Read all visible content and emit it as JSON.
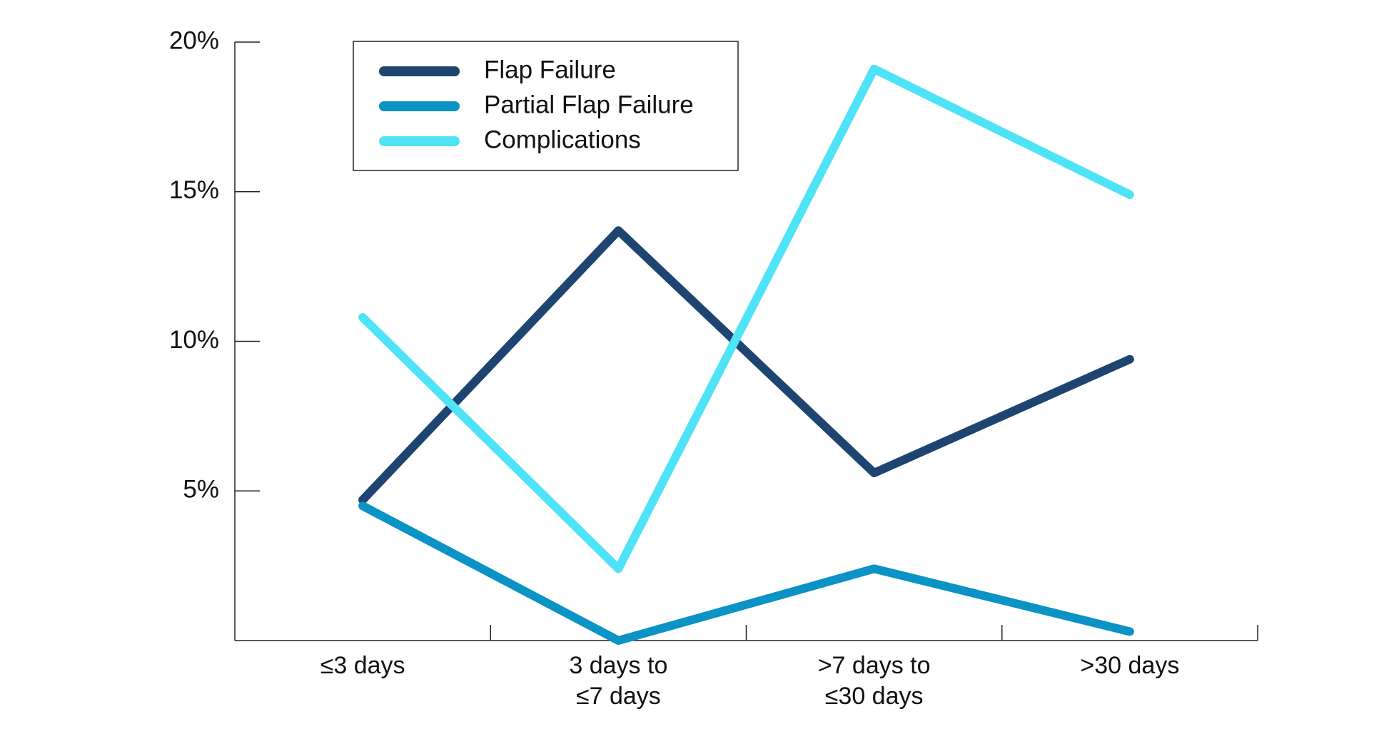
{
  "chart_data": {
    "type": "line",
    "categories": [
      "≤3 days",
      "3 days to\n≤7 days",
      ">7 days to\n≤30 days",
      ">30 days"
    ],
    "series": [
      {
        "name": "Flap Failure",
        "color": "#1e4470",
        "values": [
          4.7,
          13.7,
          5.6,
          9.4
        ]
      },
      {
        "name": "Partial Flap Failure",
        "color": "#0a93c4",
        "values": [
          4.5,
          0,
          2.4,
          0.3
        ]
      },
      {
        "name": "Complications",
        "color": "#4fe3f7",
        "values": [
          10.8,
          2.4,
          19.1,
          14.9
        ]
      }
    ],
    "ylim": [
      0,
      20
    ],
    "yticks": [
      {
        "value": 5,
        "label": "5%"
      },
      {
        "value": 10,
        "label": "10%"
      },
      {
        "value": 15,
        "label": "15%"
      },
      {
        "value": 20,
        "label": "20%"
      }
    ],
    "legend": "upper-left"
  }
}
